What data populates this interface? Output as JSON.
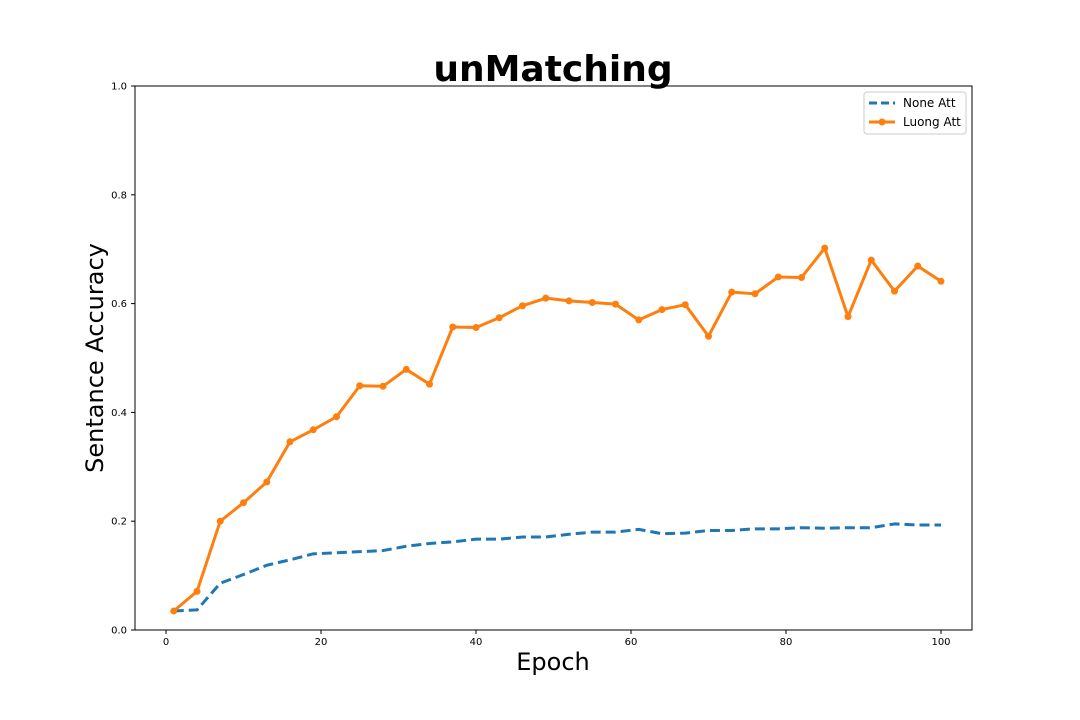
{
  "chart_data": {
    "type": "line",
    "title": "unMatching",
    "xlabel": "Epoch",
    "ylabel": "Sentance Accuracy",
    "xlim": [
      -4,
      104
    ],
    "ylim": [
      0.0,
      1.0
    ],
    "xticks": [
      0,
      20,
      40,
      60,
      80,
      100
    ],
    "yticks": [
      0.0,
      0.2,
      0.4,
      0.6,
      0.8,
      1.0
    ],
    "xtick_labels": [
      "0",
      "20",
      "40",
      "60",
      "80",
      "100"
    ],
    "ytick_labels": [
      "0.0",
      "0.2",
      "0.4",
      "0.6",
      "0.8",
      "1.0"
    ],
    "grid": false,
    "legend_position": "top-right",
    "x": [
      1,
      4,
      7,
      10,
      13,
      16,
      19,
      22,
      25,
      28,
      31,
      34,
      37,
      40,
      43,
      46,
      49,
      52,
      55,
      58,
      61,
      64,
      67,
      70,
      73,
      76,
      79,
      82,
      85,
      88,
      91,
      94,
      97,
      100
    ],
    "series": [
      {
        "name": "None Att",
        "color": "#1f77b4",
        "style": "dashed",
        "markers": false,
        "values": [
          0.035,
          0.037,
          0.086,
          0.102,
          0.119,
          0.129,
          0.14,
          0.142,
          0.144,
          0.146,
          0.154,
          0.159,
          0.162,
          0.167,
          0.167,
          0.171,
          0.171,
          0.176,
          0.18,
          0.18,
          0.185,
          0.177,
          0.178,
          0.183,
          0.183,
          0.186,
          0.186,
          0.188,
          0.187,
          0.188,
          0.188,
          0.195,
          0.193,
          0.193
        ]
      },
      {
        "name": "Luong Att",
        "color": "#ff7f0e",
        "style": "solid",
        "markers": true,
        "values": [
          0.035,
          0.071,
          0.2,
          0.234,
          0.272,
          0.346,
          0.368,
          0.392,
          0.449,
          0.448,
          0.479,
          0.452,
          0.557,
          0.556,
          0.574,
          0.596,
          0.61,
          0.605,
          0.602,
          0.599,
          0.57,
          0.589,
          0.598,
          0.54,
          0.621,
          0.618,
          0.649,
          0.648,
          0.702,
          0.576,
          0.68,
          0.623,
          0.669,
          0.641
        ]
      }
    ]
  }
}
